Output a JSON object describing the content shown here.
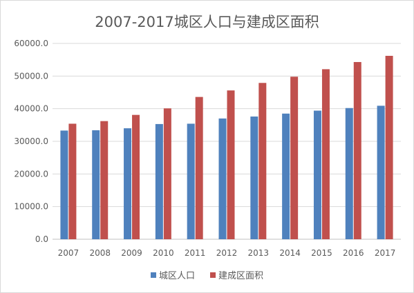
{
  "chart_data": {
    "type": "bar",
    "title": "2007-2017城区人口与建成区面积",
    "categories": [
      "2007",
      "2008",
      "2009",
      "2010",
      "2011",
      "2012",
      "2013",
      "2014",
      "2015",
      "2016",
      "2017"
    ],
    "ylim": [
      0,
      60000
    ],
    "yticks": [
      "0.0",
      "10000.0",
      "20000.0",
      "30000.0",
      "40000.0",
      "50000.0",
      "60000.0"
    ],
    "grid": true,
    "legend": "bottom",
    "series": [
      {
        "name": "城区人口",
        "color": "#4f81bd",
        "values": [
          33300,
          33400,
          34000,
          35300,
          35400,
          37000,
          37600,
          38500,
          39400,
          40200,
          40900
        ]
      },
      {
        "name": "建成区面积",
        "color": "#c0504d",
        "values": [
          35400,
          36200,
          38100,
          40100,
          43600,
          45600,
          47900,
          49800,
          52100,
          54300,
          56200
        ]
      }
    ]
  }
}
